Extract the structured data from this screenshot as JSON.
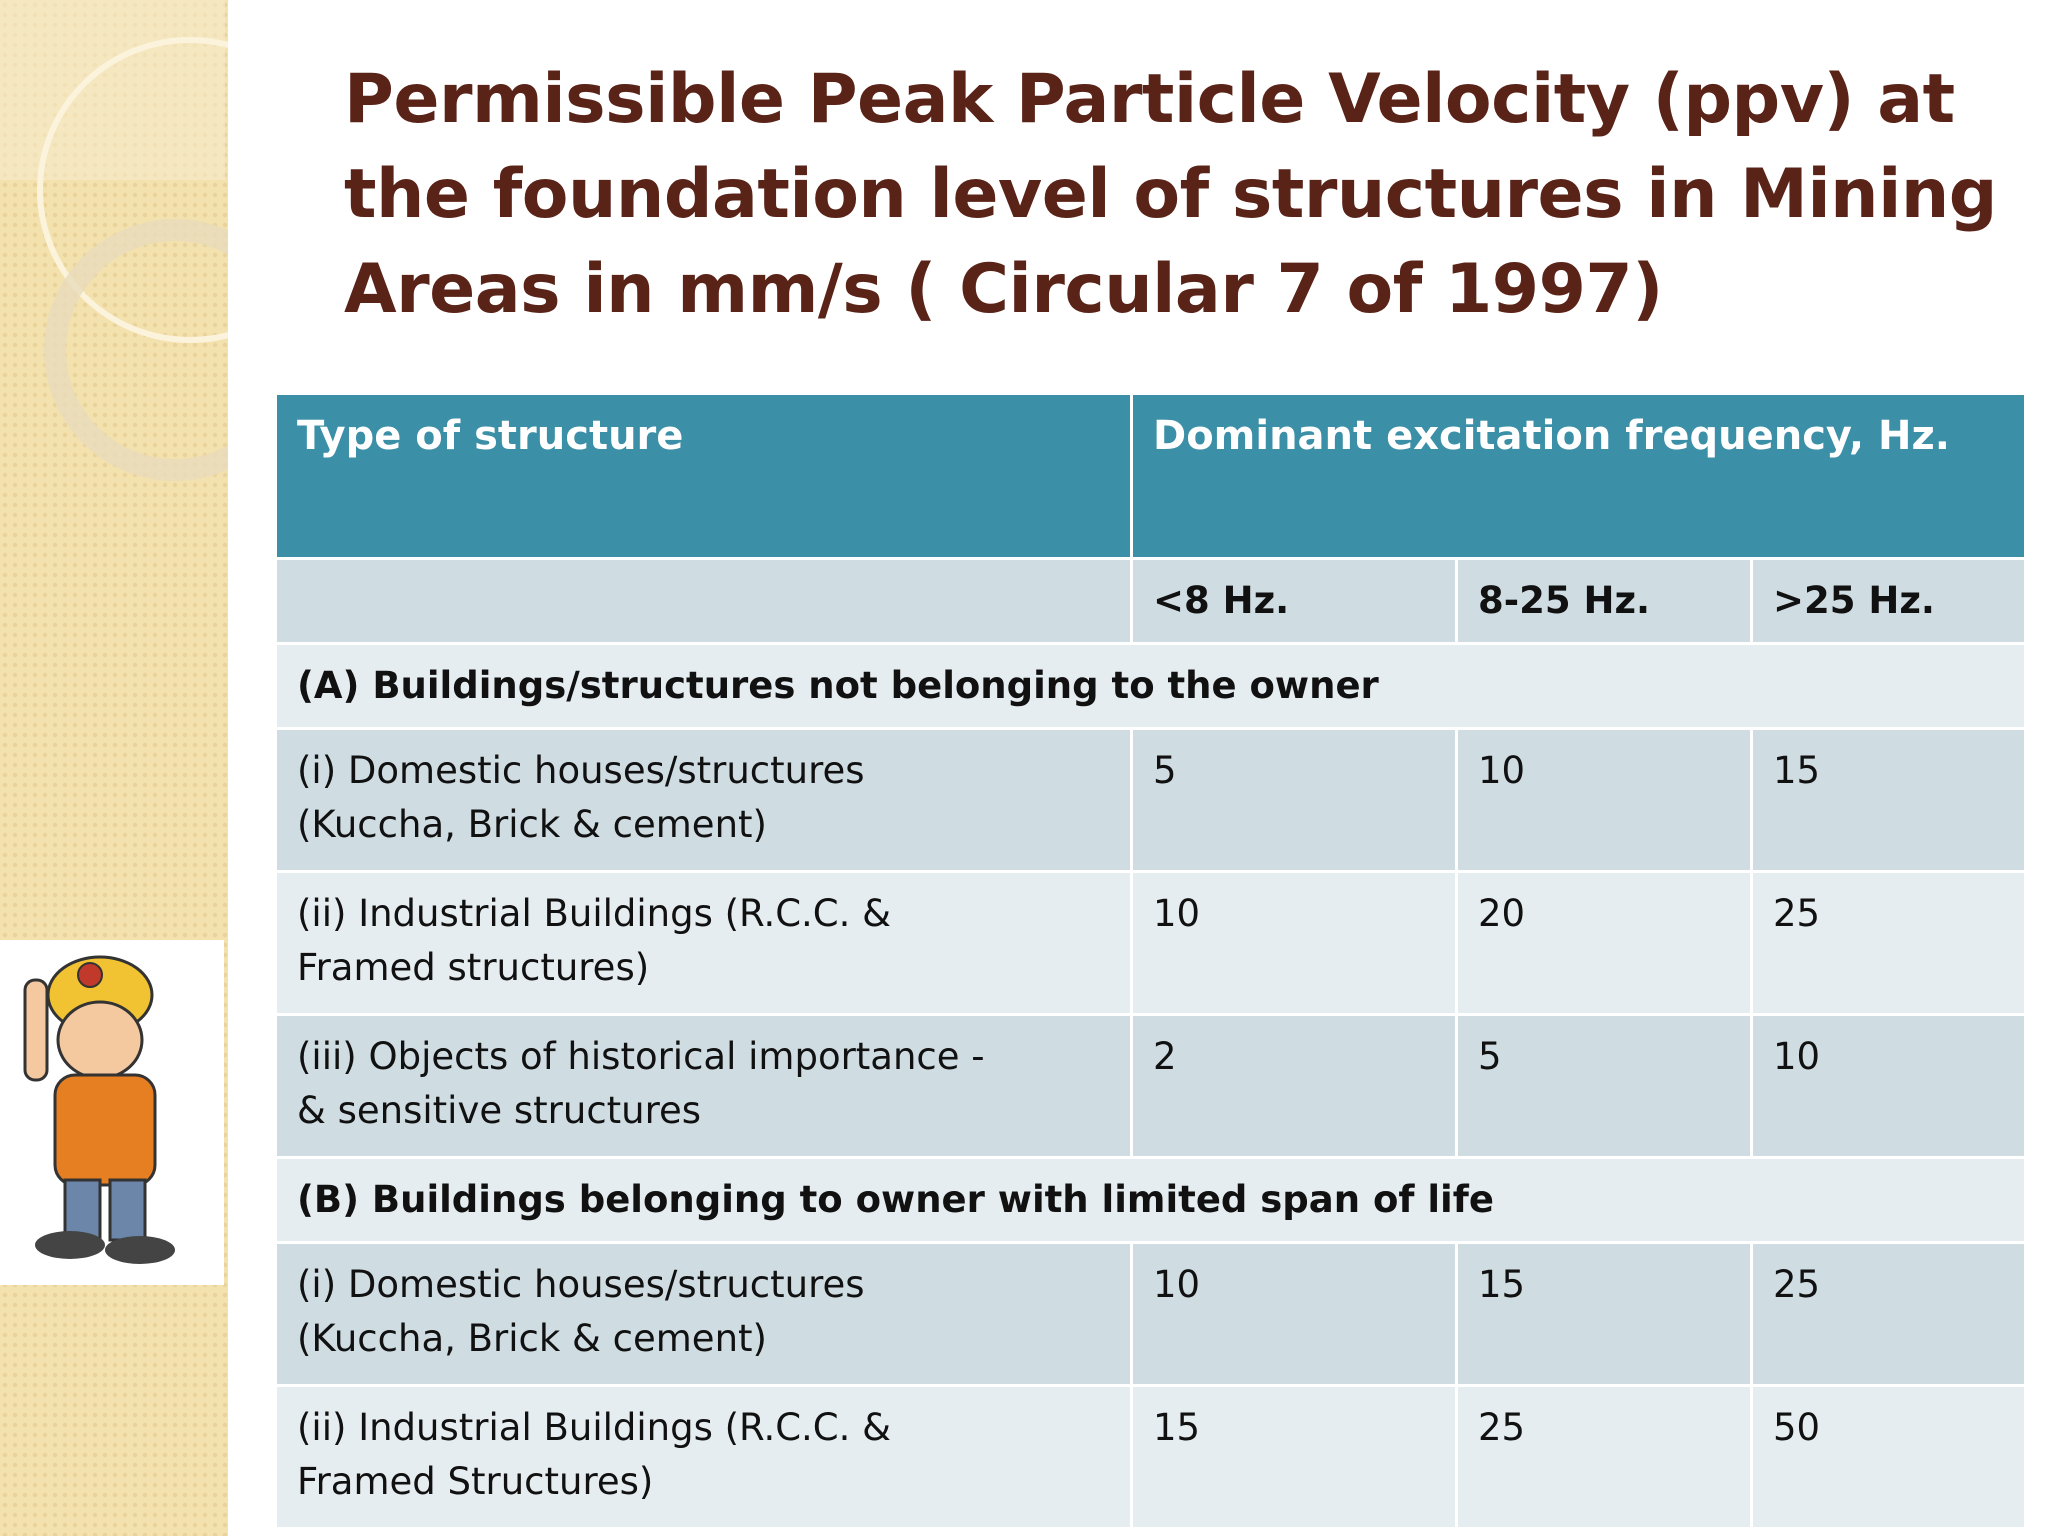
{
  "title": [
    "Permissible Peak Particle Velocity (ppv) at",
    "the foundation level of structures in Mining",
    "Areas in mm/s ( Circular 7 of 1997)"
  ],
  "table": {
    "header": [
      "Type of structure",
      "Dominant excitation frequency, Hz."
    ],
    "subheader": [
      "<8 Hz.",
      "8-25 Hz.",
      ">25 Hz."
    ],
    "sections": [
      {
        "heading": "(A) Buildings/structures not belonging to the owner",
        "rows": [
          {
            "label": [
              "(i) Domestic houses/structures",
              "(Kuccha, Brick & cement)"
            ],
            "values": [
              5,
              10,
              15
            ]
          },
          {
            "label": [
              "(ii) Industrial Buildings (R.C.C. &",
              "Framed structures)"
            ],
            "values": [
              10,
              20,
              25
            ]
          },
          {
            "label": [
              "(iii) Objects of historical importance -",
              "& sensitive structures"
            ],
            "values": [
              2,
              5,
              10
            ]
          }
        ]
      },
      {
        "heading": "(B) Buildings belonging to owner with limited span of life",
        "rows": [
          {
            "label": [
              "(i) Domestic houses/structures",
              "(Kuccha, Brick & cement)"
            ],
            "values": [
              10,
              15,
              25
            ]
          },
          {
            "label": [
              "(ii) Industrial Buildings (R.C.C. &",
              "Framed Structures)"
            ],
            "values": [
              15,
              25,
              50
            ]
          }
        ]
      }
    ]
  }
}
